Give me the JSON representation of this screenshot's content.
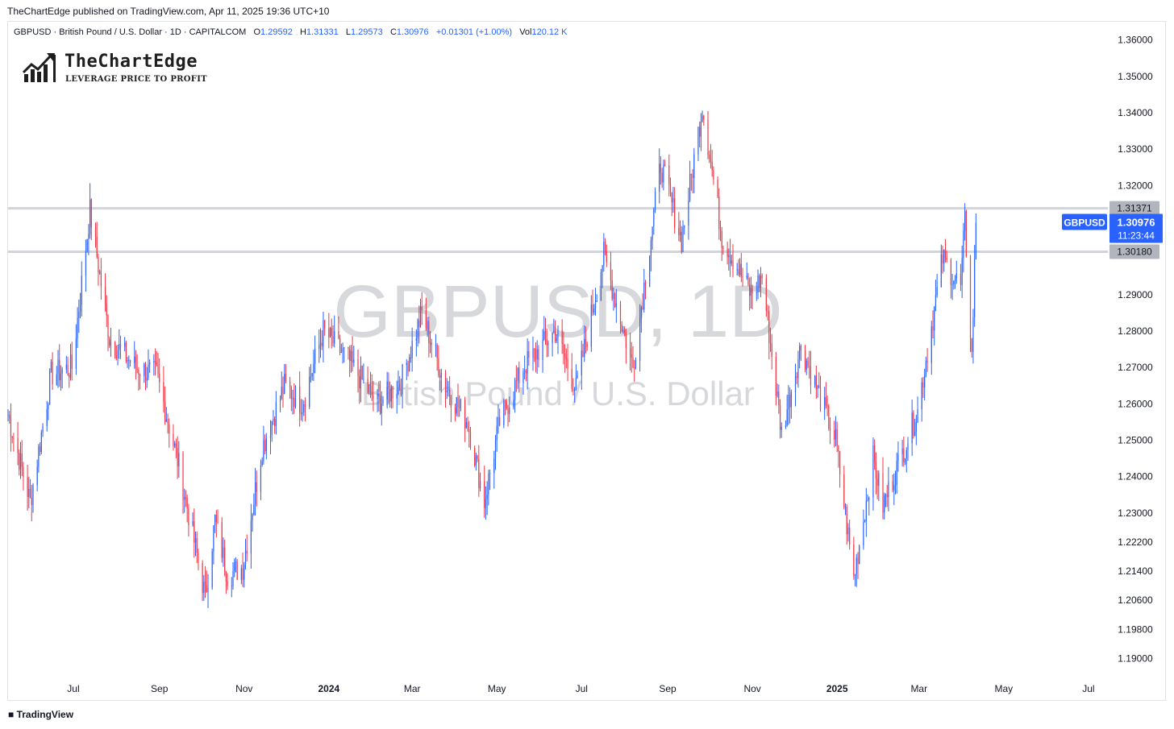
{
  "header": {
    "published_by": "TheChartEdge published on TradingView.com, Apr 11, 2025 19:36 UTC+10"
  },
  "symbol_info": {
    "name": "GBPUSD · British Pound / U.S. Dollar · 1D · CAPITALCOM",
    "open_label": "O",
    "open": "1.29592",
    "high_label": "H",
    "high": "1.31331",
    "low_label": "L",
    "low": "1.29573",
    "close_label": "C",
    "close": "1.30976",
    "change": "+0.01301 (+1.00%)",
    "volume_label": "Vol",
    "volume": "120.12 K"
  },
  "logo": {
    "name": "TheChartEdge",
    "tagline": "LEVERAGE PRICE TO PROFIT"
  },
  "watermark": {
    "title": "GBPUSD, 1D",
    "subtitle": "British Pound / U.S. Dollar"
  },
  "footer": {
    "brand_icon": "tradingview-logo-icon",
    "brand": "TradingView"
  },
  "colors": {
    "up": "#2962ff",
    "down": "#f23645",
    "level_line": "#d1d4dc",
    "price_tag": "#2962ff",
    "level_tag": "#b2b5be"
  },
  "chart_data": {
    "type": "candlestick",
    "symbol": "GBPUSD",
    "timeframe": "1D",
    "x_range": [
      "2023-05-15",
      "2025-07-15"
    ],
    "ylim": [
      1.185,
      1.365
    ],
    "y_ticks": [
      "1.36000",
      "1.35000",
      "1.34000",
      "1.33000",
      "1.32000",
      "1.29000",
      "1.28000",
      "1.27000",
      "1.26000",
      "1.25000",
      "1.24000",
      "1.23000",
      "1.22200",
      "1.21400",
      "1.20600",
      "1.19800",
      "1.19000"
    ],
    "y_tick_values": [
      1.36,
      1.35,
      1.34,
      1.33,
      1.32,
      1.29,
      1.28,
      1.27,
      1.26,
      1.25,
      1.24,
      1.23,
      1.222,
      1.214,
      1.206,
      1.198,
      1.19
    ],
    "x_ticks": [
      {
        "label": "Jul",
        "date": "2023-07-01",
        "bold": false
      },
      {
        "label": "Sep",
        "date": "2023-09-01",
        "bold": false
      },
      {
        "label": "Nov",
        "date": "2023-11-01",
        "bold": false
      },
      {
        "label": "2024",
        "date": "2024-01-01",
        "bold": true
      },
      {
        "label": "Mar",
        "date": "2024-03-01",
        "bold": false
      },
      {
        "label": "May",
        "date": "2024-05-01",
        "bold": false
      },
      {
        "label": "Jul",
        "date": "2024-07-01",
        "bold": false
      },
      {
        "label": "Sep",
        "date": "2024-09-01",
        "bold": false
      },
      {
        "label": "Nov",
        "date": "2024-11-01",
        "bold": false
      },
      {
        "label": "2025",
        "date": "2025-01-01",
        "bold": true
      },
      {
        "label": "Mar",
        "date": "2025-03-01",
        "bold": false
      },
      {
        "label": "May",
        "date": "2025-05-01",
        "bold": false
      },
      {
        "label": "Jul",
        "date": "2025-07-01",
        "bold": false
      }
    ],
    "horizontal_levels": [
      {
        "value": 1.31371,
        "label": "1.31371"
      },
      {
        "value": 1.3018,
        "label": "1.30180"
      }
    ],
    "last_price": {
      "value": 1.30976,
      "label": "1.30976",
      "countdown": "11:23:44",
      "symbol": "GBPUSD"
    },
    "price_path": [
      {
        "date": "2023-05-15",
        "close": 1.257
      },
      {
        "date": "2023-05-31",
        "close": 1.233
      },
      {
        "date": "2023-06-15",
        "close": 1.268
      },
      {
        "date": "2023-06-30",
        "close": 1.27
      },
      {
        "date": "2023-07-13",
        "close": 1.313
      },
      {
        "date": "2023-07-27",
        "close": 1.278
      },
      {
        "date": "2023-08-15",
        "close": 1.27
      },
      {
        "date": "2023-08-30",
        "close": 1.268
      },
      {
        "date": "2023-09-15",
        "close": 1.243
      },
      {
        "date": "2023-10-04",
        "close": 1.207
      },
      {
        "date": "2023-10-11",
        "close": 1.228
      },
      {
        "date": "2023-10-20",
        "close": 1.213
      },
      {
        "date": "2023-10-31",
        "close": 1.215
      },
      {
        "date": "2023-11-14",
        "close": 1.248
      },
      {
        "date": "2023-11-30",
        "close": 1.265
      },
      {
        "date": "2023-12-13",
        "close": 1.26
      },
      {
        "date": "2023-12-28",
        "close": 1.28
      },
      {
        "date": "2024-01-15",
        "close": 1.272
      },
      {
        "date": "2024-02-05",
        "close": 1.26
      },
      {
        "date": "2024-02-22",
        "close": 1.266
      },
      {
        "date": "2024-03-08",
        "close": 1.285
      },
      {
        "date": "2024-03-25",
        "close": 1.265
      },
      {
        "date": "2024-04-10",
        "close": 1.255
      },
      {
        "date": "2024-04-22",
        "close": 1.233
      },
      {
        "date": "2024-05-03",
        "close": 1.255
      },
      {
        "date": "2024-05-20",
        "close": 1.27
      },
      {
        "date": "2024-06-12",
        "close": 1.28
      },
      {
        "date": "2024-06-27",
        "close": 1.264
      },
      {
        "date": "2024-07-17",
        "close": 1.301
      },
      {
        "date": "2024-08-07",
        "close": 1.27
      },
      {
        "date": "2024-08-27",
        "close": 1.326
      },
      {
        "date": "2024-09-11",
        "close": 1.305
      },
      {
        "date": "2024-09-26",
        "close": 1.342
      },
      {
        "date": "2024-10-10",
        "close": 1.306
      },
      {
        "date": "2024-10-31",
        "close": 1.29
      },
      {
        "date": "2024-11-08",
        "close": 1.295
      },
      {
        "date": "2024-11-22",
        "close": 1.252
      },
      {
        "date": "2024-12-06",
        "close": 1.276
      },
      {
        "date": "2024-12-31",
        "close": 1.25
      },
      {
        "date": "2025-01-13",
        "close": 1.212
      },
      {
        "date": "2025-01-27",
        "close": 1.245
      },
      {
        "date": "2025-02-03",
        "close": 1.232
      },
      {
        "date": "2025-02-28",
        "close": 1.258
      },
      {
        "date": "2025-03-18",
        "close": 1.3
      },
      {
        "date": "2025-03-31",
        "close": 1.292
      },
      {
        "date": "2025-04-03",
        "close": 1.31
      },
      {
        "date": "2025-04-08",
        "close": 1.273
      },
      {
        "date": "2025-04-11",
        "close": 1.30976
      }
    ]
  }
}
